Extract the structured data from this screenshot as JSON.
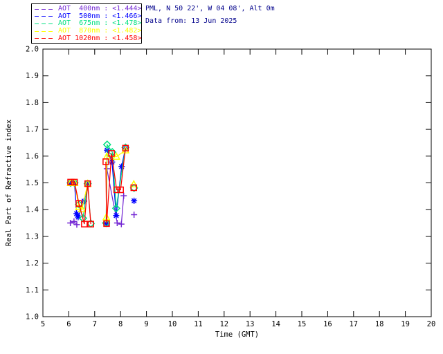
{
  "header": {
    "site_line": "PML, N 50 22', W 04 08', Alt 0m",
    "date_line": "Data from: 13 Jun 2025",
    "text_color": "#00008b"
  },
  "legend": {
    "items": [
      {
        "label": "AOT  400nm : <1.444>",
        "wavelength": "400nm",
        "mean": "1.444",
        "color": "#7326d3",
        "marker": "plus"
      },
      {
        "label": "AOT  500nm : <1.466>",
        "wavelength": "500nm",
        "mean": "1.466",
        "color": "#0000ff",
        "marker": "asterisk"
      },
      {
        "label": "AOT  675nm : <1.478>",
        "wavelength": "675nm",
        "mean": "1.478",
        "color": "#00e080",
        "marker": "diamond"
      },
      {
        "label": "AOT  870nm : <1.482>",
        "wavelength": "870nm",
        "mean": "1.482",
        "color": "#ffff00",
        "marker": "triangle"
      },
      {
        "label": "AOT 1020nm : <1.458>",
        "wavelength": "1020nm",
        "mean": "1.458",
        "color": "#ff0000",
        "marker": "square"
      }
    ]
  },
  "chart_data": {
    "type": "line",
    "title": "",
    "xlabel": "Time (GMT)",
    "ylabel": "Real Part of Refractive index",
    "xlim": [
      5,
      20
    ],
    "xtick_step": 1,
    "ylim": [
      1.0,
      2.0
    ],
    "ytick_step": 0.1,
    "grid": false,
    "legend_position": "top-left-outside",
    "series": [
      {
        "name": "AOT 400nm",
        "mean": 1.444,
        "color": "#7326d3",
        "marker": "plus",
        "segments": [
          [
            [
              6.06,
              1.35
            ],
            [
              6.2,
              1.356
            ],
            [
              6.31,
              1.344
            ]
          ],
          [
            [
              7.47,
              1.553
            ],
            [
              7.87,
              1.35
            ],
            [
              8.03,
              1.346
            ],
            [
              8.12,
              1.452
            ]
          ],
          [
            [
              8.52,
              1.381
            ]
          ]
        ]
      },
      {
        "name": "AOT 500nm",
        "mean": 1.466,
        "color": "#0000ff",
        "marker": "asterisk",
        "segments": [
          [
            [
              6.07,
              1.5
            ],
            [
              6.22,
              1.5
            ],
            [
              6.3,
              1.385
            ],
            [
              6.36,
              1.372
            ],
            [
              6.59,
              1.432
            ],
            [
              6.73,
              1.497
            ]
          ],
          [
            [
              7.45,
              1.348
            ],
            [
              7.48,
              1.622
            ],
            [
              7.67,
              1.578
            ],
            [
              7.83,
              1.378
            ],
            [
              8.04,
              1.561
            ],
            [
              8.19,
              1.63
            ]
          ],
          [
            [
              8.52,
              1.433
            ]
          ]
        ]
      },
      {
        "name": "AOT 675nm",
        "mean": 1.478,
        "color": "#00e080",
        "marker": "diamond",
        "segments": [
          [
            [
              6.07,
              1.5
            ],
            [
              6.22,
              1.5
            ],
            [
              6.39,
              1.42
            ],
            [
              6.55,
              1.368
            ],
            [
              6.73,
              1.497
            ],
            [
              6.85,
              1.348
            ]
          ],
          [
            [
              7.44,
              1.35
            ],
            [
              7.48,
              1.643
            ],
            [
              7.68,
              1.615
            ],
            [
              7.83,
              1.405
            ],
            [
              8.19,
              1.632
            ]
          ],
          [
            [
              8.52,
              1.481
            ]
          ]
        ]
      },
      {
        "name": "AOT 870nm",
        "mean": 1.482,
        "color": "#ffff00",
        "marker": "triangle",
        "segments": [
          [
            [
              6.07,
              1.5
            ],
            [
              6.22,
              1.5
            ],
            [
              6.39,
              1.41
            ],
            [
              6.51,
              1.402
            ],
            [
              6.73,
              1.497
            ]
          ],
          [
            [
              7.45,
              1.372
            ],
            [
              7.47,
              1.599
            ],
            [
              7.84,
              1.598
            ],
            [
              8.19,
              1.622
            ]
          ],
          [
            [
              8.51,
              1.495
            ]
          ]
        ]
      },
      {
        "name": "AOT 1020nm",
        "mean": 1.458,
        "color": "#ff0000",
        "marker": "square",
        "segments": [
          [
            [
              6.07,
              1.503
            ],
            [
              6.22,
              1.503
            ],
            [
              6.39,
              1.423
            ],
            [
              6.6,
              1.346
            ],
            [
              6.73,
              1.497
            ],
            [
              6.85,
              1.346
            ]
          ],
          [
            [
              7.43,
              1.579
            ],
            [
              7.46,
              1.348
            ],
            [
              7.65,
              1.61
            ],
            [
              7.85,
              1.474
            ],
            [
              8.0,
              1.474
            ],
            [
              8.19,
              1.63
            ]
          ],
          [
            [
              8.51,
              1.482
            ]
          ]
        ]
      }
    ]
  }
}
